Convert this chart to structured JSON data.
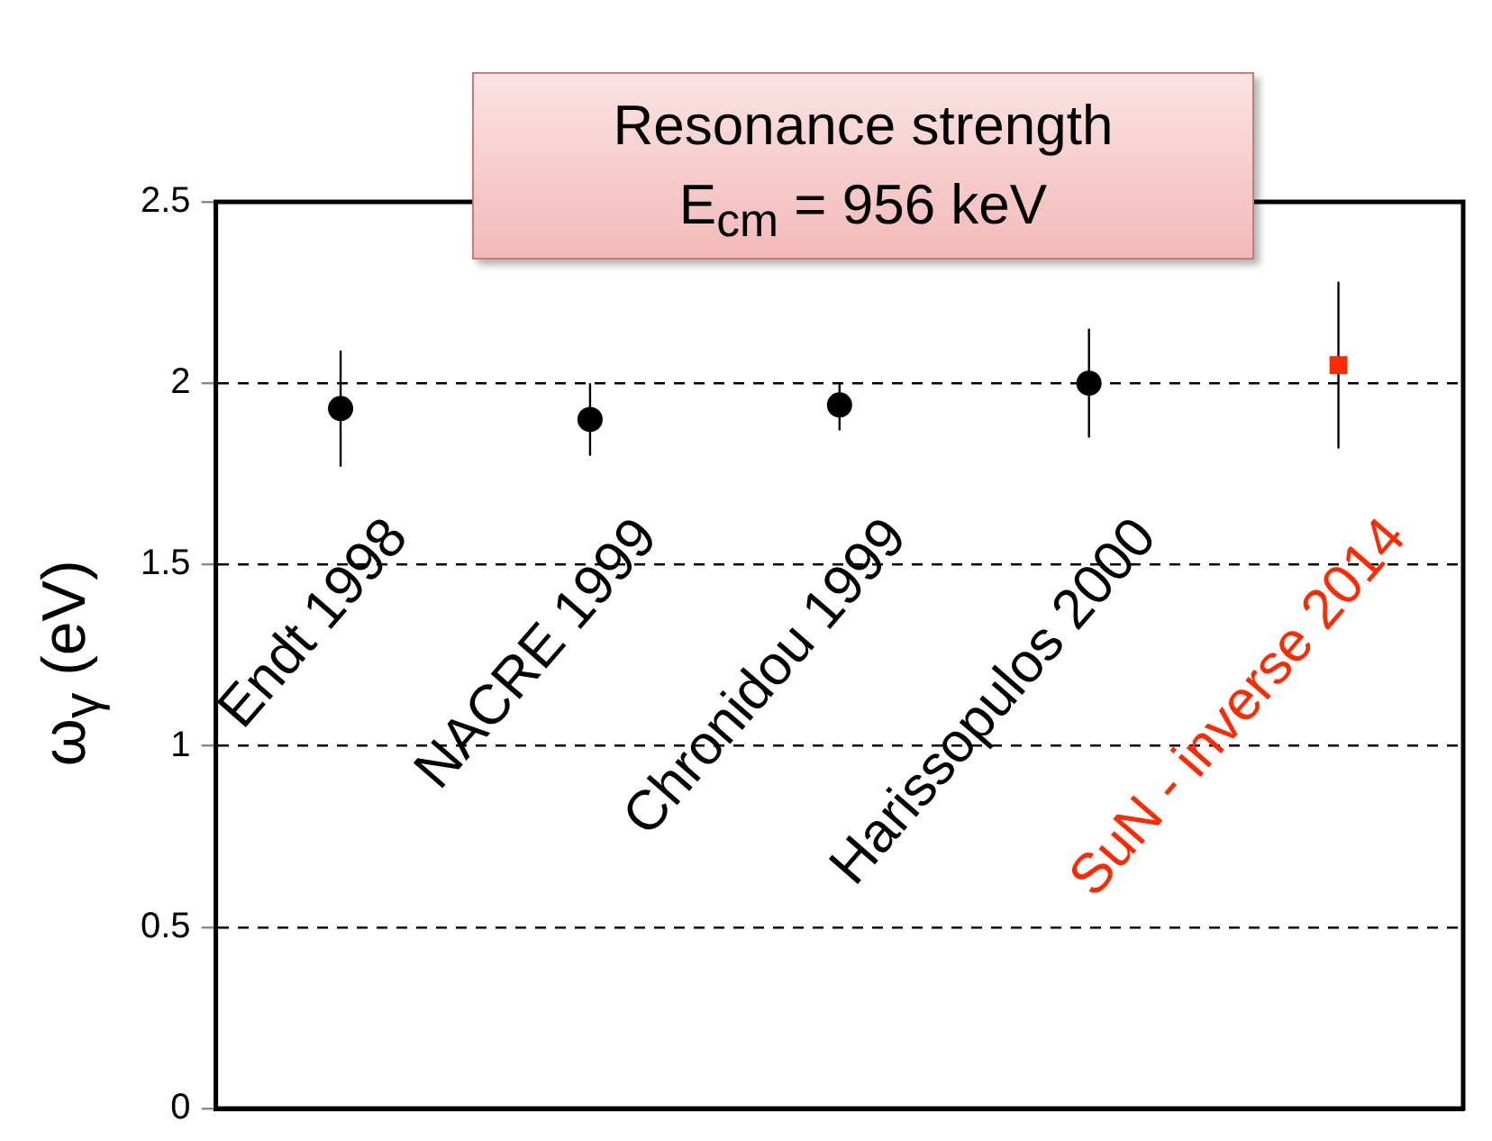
{
  "chart_data": {
    "type": "scatter",
    "title": "Resonance strength\nE$_{cm}$ = 956 keV",
    "ylabel": "ω$_{γ}$ (eV)",
    "categories": [
      "Endt 1998",
      "NACRE 1999",
      "Chronidou 1999",
      "Harissopulos 2000",
      "SuN - inverse 2014"
    ],
    "series": [
      {
        "color": "#000000",
        "marker": "circle",
        "values": [
          1.93,
          1.9,
          1.94,
          2.0,
          null
        ],
        "errors": [
          [
            1.77,
            2.09
          ],
          [
            1.8,
            2.0
          ],
          [
            1.87,
            2.0
          ],
          [
            1.85,
            2.15
          ],
          null
        ]
      },
      {
        "color": "#ff2a00",
        "marker": "square",
        "values": [
          null,
          null,
          null,
          null,
          2.05
        ],
        "errors": [
          null,
          null,
          null,
          null,
          [
            1.82,
            2.28
          ]
        ]
      }
    ],
    "ylim": [
      0,
      2.5
    ],
    "yticks": [
      0,
      0.5,
      1,
      1.5,
      2,
      2.5
    ],
    "grid": "y",
    "legend": false
  }
}
